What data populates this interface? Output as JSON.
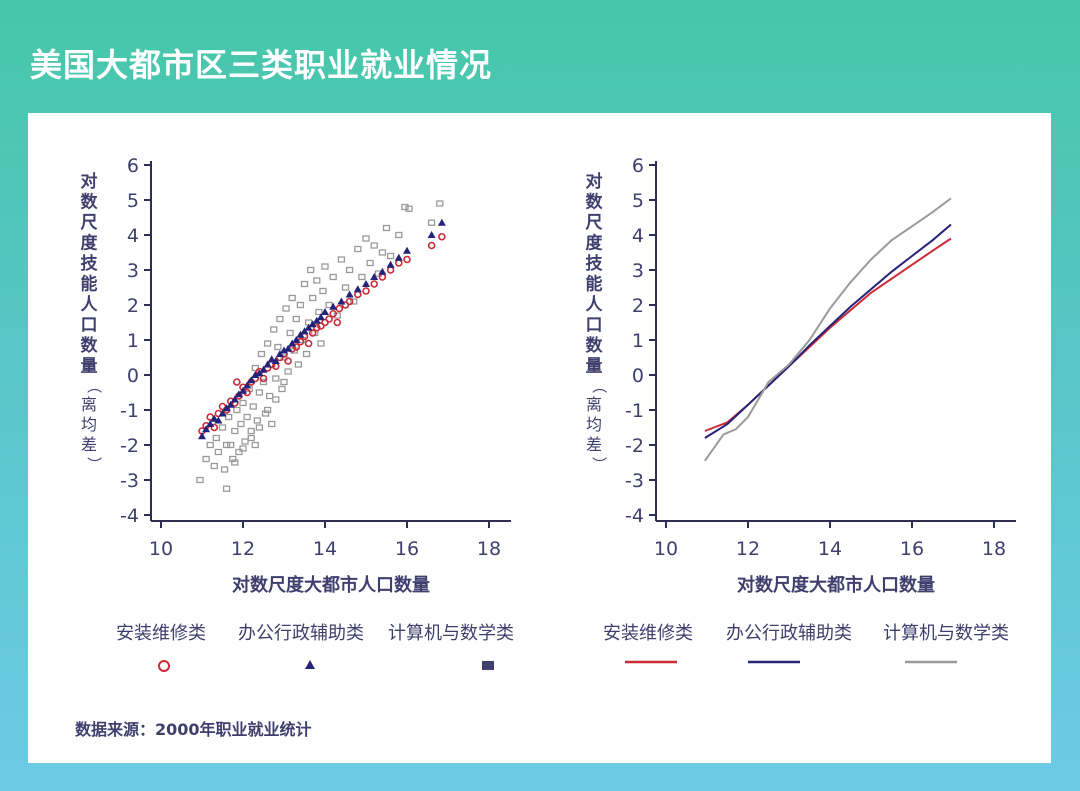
{
  "page_title": "美国大都市区三类职业就业情况",
  "source_note": "数据来源：2000年职业就业统计",
  "colors": {
    "install": "#cc2a36",
    "admin": "#23237a",
    "computer": "#9a9a9a",
    "text": "#3f3f6e"
  },
  "chart_data": [
    {
      "type": "scatter",
      "xlabel": "对数尺度大都市人口数量",
      "ylabel": "对数尺度技能人口数量（离均差）",
      "xlim": [
        10,
        18
      ],
      "ylim": [
        -4,
        6
      ],
      "xticks": [
        10,
        12,
        14,
        16,
        18
      ],
      "yticks": [
        6,
        5,
        4,
        3,
        2,
        1,
        0,
        -1,
        -2,
        -3,
        -4
      ],
      "legend_position": "bottom",
      "series": [
        {
          "name": "安装维修类",
          "marker": "hollow-circle",
          "color": "#cc2a36",
          "points": [
            [
              11.0,
              -1.6
            ],
            [
              11.1,
              -1.45
            ],
            [
              11.2,
              -1.2
            ],
            [
              11.3,
              -1.5
            ],
            [
              11.4,
              -1.1
            ],
            [
              11.5,
              -0.9
            ],
            [
              11.6,
              -1.0
            ],
            [
              11.7,
              -0.75
            ],
            [
              11.8,
              -0.8
            ],
            [
              11.9,
              -0.6
            ],
            [
              11.85,
              -0.2
            ],
            [
              12.0,
              -0.35
            ],
            [
              12.1,
              -0.5
            ],
            [
              12.2,
              -0.2
            ],
            [
              12.3,
              -0.1
            ],
            [
              12.4,
              0.1
            ],
            [
              12.5,
              -0.1
            ],
            [
              12.6,
              0.2
            ],
            [
              12.7,
              0.3
            ],
            [
              12.8,
              0.25
            ],
            [
              12.9,
              0.5
            ],
            [
              13.0,
              0.6
            ],
            [
              13.1,
              0.4
            ],
            [
              13.2,
              0.75
            ],
            [
              13.3,
              0.8
            ],
            [
              13.4,
              0.95
            ],
            [
              13.5,
              1.1
            ],
            [
              13.6,
              0.9
            ],
            [
              13.7,
              1.2
            ],
            [
              13.8,
              1.35
            ],
            [
              13.9,
              1.4
            ],
            [
              14.0,
              1.5
            ],
            [
              14.1,
              1.6
            ],
            [
              14.2,
              1.75
            ],
            [
              14.3,
              1.5
            ],
            [
              14.35,
              1.9
            ],
            [
              14.5,
              2.0
            ],
            [
              14.6,
              2.1
            ],
            [
              14.8,
              2.3
            ],
            [
              15.0,
              2.4
            ],
            [
              15.2,
              2.6
            ],
            [
              15.4,
              2.8
            ],
            [
              15.6,
              3.0
            ],
            [
              15.8,
              3.2
            ],
            [
              16.0,
              3.3
            ],
            [
              16.6,
              3.7
            ],
            [
              16.85,
              3.95
            ]
          ]
        },
        {
          "name": "办公行政辅助类",
          "marker": "triangle",
          "color": "#23237a",
          "points": [
            [
              11.0,
              -1.75
            ],
            [
              11.1,
              -1.55
            ],
            [
              11.2,
              -1.4
            ],
            [
              11.3,
              -1.25
            ],
            [
              11.4,
              -1.3
            ],
            [
              11.5,
              -1.1
            ],
            [
              11.6,
              -0.95
            ],
            [
              11.7,
              -0.85
            ],
            [
              11.8,
              -0.7
            ],
            [
              11.9,
              -0.55
            ],
            [
              12.0,
              -0.45
            ],
            [
              12.1,
              -0.3
            ],
            [
              12.2,
              -0.15
            ],
            [
              12.3,
              0.0
            ],
            [
              12.4,
              0.05
            ],
            [
              12.5,
              0.15
            ],
            [
              12.6,
              0.3
            ],
            [
              12.7,
              0.45
            ],
            [
              12.8,
              0.4
            ],
            [
              12.9,
              0.6
            ],
            [
              13.0,
              0.7
            ],
            [
              13.1,
              0.75
            ],
            [
              13.2,
              0.9
            ],
            [
              13.3,
              1.0
            ],
            [
              13.4,
              1.15
            ],
            [
              13.5,
              1.25
            ],
            [
              13.6,
              1.35
            ],
            [
              13.7,
              1.45
            ],
            [
              13.8,
              1.55
            ],
            [
              13.9,
              1.65
            ],
            [
              14.0,
              1.8
            ],
            [
              14.2,
              1.95
            ],
            [
              14.4,
              2.1
            ],
            [
              14.6,
              2.3
            ],
            [
              14.8,
              2.45
            ],
            [
              15.0,
              2.6
            ],
            [
              15.2,
              2.8
            ],
            [
              15.4,
              2.95
            ],
            [
              15.6,
              3.15
            ],
            [
              15.8,
              3.35
            ],
            [
              16.0,
              3.55
            ],
            [
              16.6,
              4.0
            ],
            [
              16.85,
              4.35
            ]
          ]
        },
        {
          "name": "计算机与数学类",
          "marker": "hollow-square",
          "color": "#9a9a9a",
          "points": [
            [
              10.95,
              -3.0
            ],
            [
              11.1,
              -2.4
            ],
            [
              11.2,
              -2.0
            ],
            [
              11.3,
              -2.6
            ],
            [
              11.35,
              -1.8
            ],
            [
              11.4,
              -2.2
            ],
            [
              11.5,
              -1.5
            ],
            [
              11.55,
              -2.7
            ],
            [
              11.6,
              -3.25
            ],
            [
              11.65,
              -1.2
            ],
            [
              11.7,
              -2.0
            ],
            [
              11.75,
              -2.4
            ],
            [
              11.8,
              -1.6
            ],
            [
              11.85,
              -1.0
            ],
            [
              11.9,
              -2.2
            ],
            [
              11.95,
              -1.4
            ],
            [
              12.0,
              -0.8
            ],
            [
              12.05,
              -1.9
            ],
            [
              12.1,
              -1.2
            ],
            [
              12.15,
              -0.4
            ],
            [
              12.2,
              -1.6
            ],
            [
              12.25,
              -0.9
            ],
            [
              12.3,
              0.2
            ],
            [
              12.35,
              -1.3
            ],
            [
              12.4,
              -0.5
            ],
            [
              12.45,
              0.6
            ],
            [
              12.5,
              -0.2
            ],
            [
              12.55,
              -1.1
            ],
            [
              12.6,
              0.9
            ],
            [
              12.65,
              -0.6
            ],
            [
              12.7,
              0.3
            ],
            [
              12.75,
              1.3
            ],
            [
              12.8,
              -0.1
            ],
            [
              12.85,
              0.8
            ],
            [
              12.9,
              1.6
            ],
            [
              12.95,
              -0.4
            ],
            [
              13.0,
              0.5
            ],
            [
              13.05,
              1.9
            ],
            [
              13.1,
              0.1
            ],
            [
              13.15,
              1.2
            ],
            [
              13.2,
              2.2
            ],
            [
              13.25,
              0.7
            ],
            [
              13.3,
              1.6
            ],
            [
              13.35,
              0.3
            ],
            [
              13.4,
              2.0
            ],
            [
              13.45,
              1.0
            ],
            [
              13.5,
              2.6
            ],
            [
              13.55,
              0.6
            ],
            [
              13.6,
              1.5
            ],
            [
              13.65,
              3.0
            ],
            [
              13.7,
              2.2
            ],
            [
              13.75,
              1.2
            ],
            [
              13.8,
              2.7
            ],
            [
              13.85,
              1.8
            ],
            [
              13.9,
              0.9
            ],
            [
              13.95,
              2.4
            ],
            [
              14.0,
              3.1
            ],
            [
              14.1,
              2.0
            ],
            [
              14.2,
              2.8
            ],
            [
              14.3,
              1.7
            ],
            [
              14.4,
              3.3
            ],
            [
              14.5,
              2.5
            ],
            [
              14.6,
              3.0
            ],
            [
              14.7,
              2.1
            ],
            [
              14.8,
              3.6
            ],
            [
              14.9,
              2.8
            ],
            [
              15.0,
              3.9
            ],
            [
              15.1,
              3.2
            ],
            [
              15.2,
              3.7
            ],
            [
              15.3,
              2.9
            ],
            [
              15.4,
              3.5
            ],
            [
              15.5,
              4.2
            ],
            [
              15.6,
              3.4
            ],
            [
              15.8,
              4.0
            ],
            [
              15.95,
              4.8
            ],
            [
              16.05,
              4.75
            ],
            [
              16.6,
              4.35
            ],
            [
              16.8,
              4.9
            ],
            [
              11.6,
              -2.0
            ],
            [
              11.8,
              -2.5
            ],
            [
              12.0,
              -2.1
            ],
            [
              12.2,
              -1.8
            ],
            [
              12.4,
              -1.5
            ],
            [
              12.6,
              -1.0
            ],
            [
              12.8,
              -0.7
            ],
            [
              13.0,
              -0.2
            ],
            [
              12.3,
              -2.0
            ],
            [
              12.7,
              -1.4
            ]
          ]
        }
      ]
    },
    {
      "type": "line",
      "xlabel": "对数尺度大都市人口数量",
      "ylabel": "对数尺度技能人口数量（离均差）",
      "xlim": [
        10,
        18
      ],
      "ylim": [
        -4,
        6
      ],
      "xticks": [
        10,
        12,
        14,
        16,
        18
      ],
      "yticks": [
        6,
        5,
        4,
        3,
        2,
        1,
        0,
        -1,
        -2,
        -3,
        -4
      ],
      "legend_position": "bottom",
      "series": [
        {
          "name": "安装维修类",
          "color": "#cc2a36",
          "points": [
            [
              10.95,
              -1.6
            ],
            [
              11.5,
              -1.35
            ],
            [
              12.0,
              -0.85
            ],
            [
              12.5,
              -0.3
            ],
            [
              13.0,
              0.25
            ],
            [
              13.5,
              0.8
            ],
            [
              14.0,
              1.35
            ],
            [
              14.5,
              1.85
            ],
            [
              15.0,
              2.35
            ],
            [
              15.5,
              2.75
            ],
            [
              16.0,
              3.15
            ],
            [
              16.5,
              3.55
            ],
            [
              16.95,
              3.9
            ]
          ]
        },
        {
          "name": "办公行政辅助类",
          "color": "#23237a",
          "points": [
            [
              10.95,
              -1.8
            ],
            [
              11.5,
              -1.4
            ],
            [
              12.0,
              -0.85
            ],
            [
              12.5,
              -0.3
            ],
            [
              13.0,
              0.25
            ],
            [
              13.5,
              0.85
            ],
            [
              14.0,
              1.4
            ],
            [
              14.5,
              1.95
            ],
            [
              15.0,
              2.45
            ],
            [
              15.5,
              2.95
            ],
            [
              16.0,
              3.4
            ],
            [
              16.5,
              3.85
            ],
            [
              16.95,
              4.3
            ]
          ]
        },
        {
          "name": "计算机与数学类",
          "color": "#9a9a9a",
          "points": [
            [
              10.95,
              -2.45
            ],
            [
              11.4,
              -1.7
            ],
            [
              11.7,
              -1.55
            ],
            [
              12.0,
              -1.2
            ],
            [
              12.5,
              -0.2
            ],
            [
              13.0,
              0.3
            ],
            [
              13.5,
              1.0
            ],
            [
              14.0,
              1.9
            ],
            [
              14.5,
              2.65
            ],
            [
              15.0,
              3.3
            ],
            [
              15.5,
              3.85
            ],
            [
              16.0,
              4.25
            ],
            [
              16.5,
              4.65
            ],
            [
              16.95,
              5.05
            ]
          ]
        }
      ]
    }
  ]
}
